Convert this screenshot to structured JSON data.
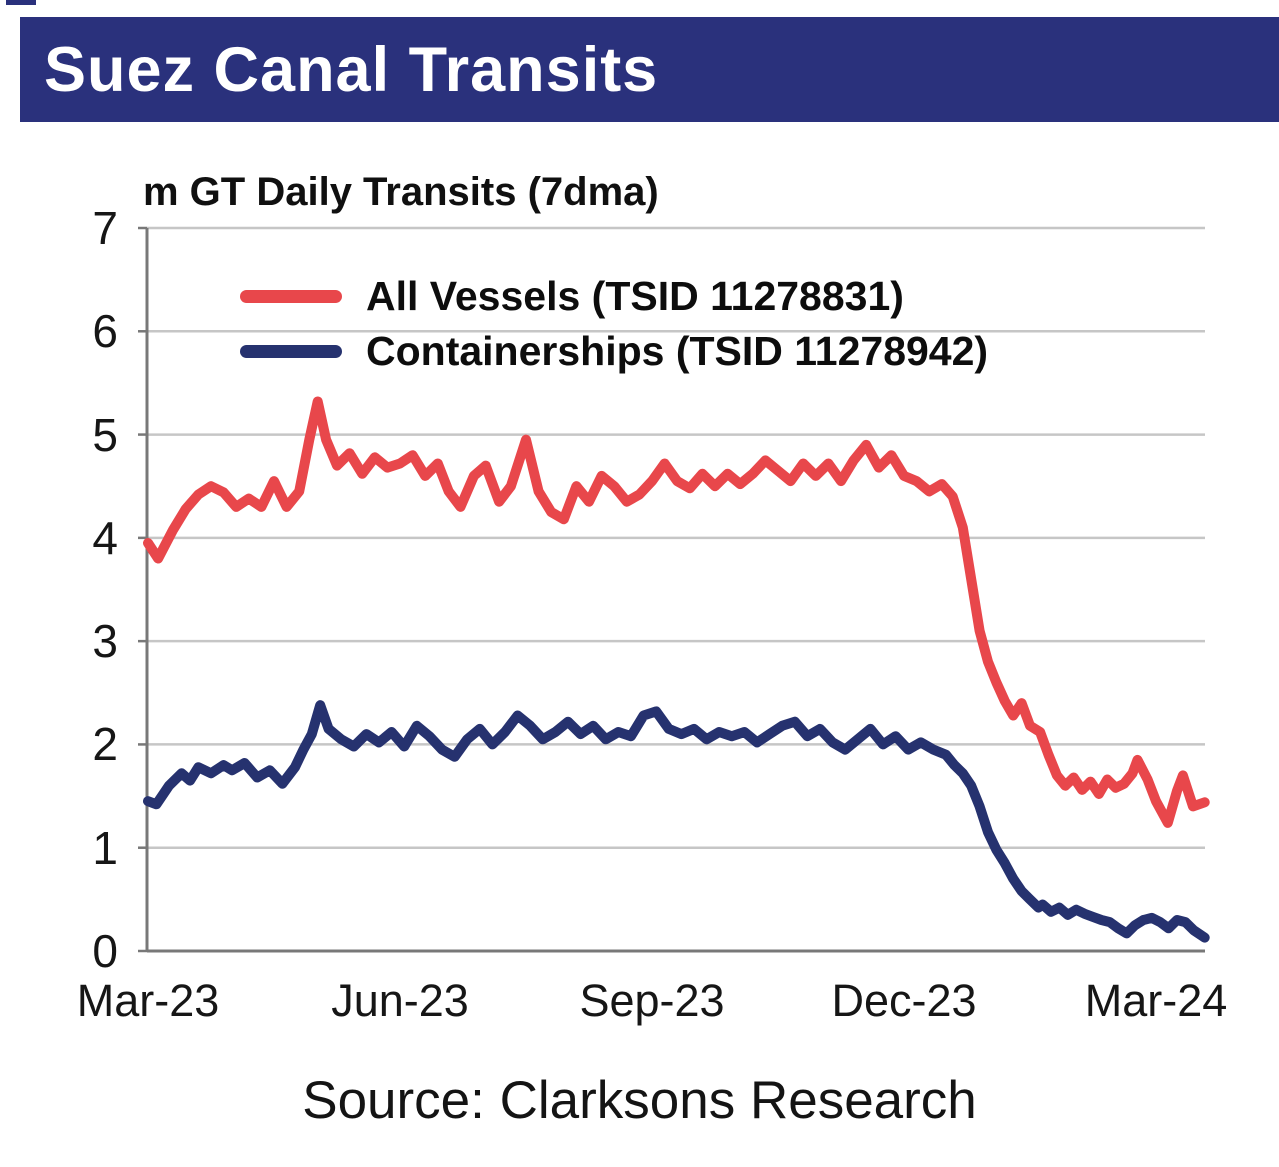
{
  "banner": {
    "title": "Suez Canal Transits"
  },
  "colors": {
    "banner_bg": "#2A317C",
    "all_vessels_red": "#E8474B",
    "containerships_navy": "#26326F",
    "gridline_gray": "#C6C6C6",
    "axis_gray": "#787878"
  },
  "chart": {
    "axis_title": "m GT Daily Transits (7dma)"
  },
  "source": {
    "text": "Source: Clarksons Research"
  },
  "chart_data": {
    "type": "line",
    "title": "Suez Canal Transits",
    "ylabel": "m GT Daily Transits (7dma)",
    "x_unit": "months since Mar-2023 (0 = Mar-23)",
    "xlim": [
      0,
      12.58
    ],
    "ylim": [
      0,
      7
    ],
    "grid": "horizontal gridlines at 1,2,3,4,5,6 plus top border at 7",
    "legend_position": "inside top-left",
    "y_ticks": [
      0,
      1,
      2,
      3,
      4,
      5,
      6,
      7
    ],
    "x_ticks": [
      {
        "label": "Mar-23",
        "month": 0
      },
      {
        "label": "Jun-23",
        "month": 3
      },
      {
        "label": "Sep-23",
        "month": 6
      },
      {
        "label": "Dec-23",
        "month": 9
      },
      {
        "label": "Mar-24",
        "month": 12
      }
    ],
    "source": "Source: Clarksons Research",
    "series": [
      {
        "name": "All Vessels (TSID 11278831)",
        "color": "#E8474B",
        "points": [
          [
            0,
            3.95
          ],
          [
            0.12,
            3.8
          ],
          [
            0.3,
            4.08
          ],
          [
            0.45,
            4.28
          ],
          [
            0.6,
            4.42
          ],
          [
            0.75,
            4.5
          ],
          [
            0.9,
            4.44
          ],
          [
            1.05,
            4.3
          ],
          [
            1.2,
            4.38
          ],
          [
            1.35,
            4.3
          ],
          [
            1.5,
            4.55
          ],
          [
            1.65,
            4.3
          ],
          [
            1.8,
            4.45
          ],
          [
            1.92,
            4.95
          ],
          [
            2.02,
            5.32
          ],
          [
            2.12,
            4.95
          ],
          [
            2.25,
            4.7
          ],
          [
            2.4,
            4.82
          ],
          [
            2.55,
            4.62
          ],
          [
            2.7,
            4.78
          ],
          [
            2.85,
            4.68
          ],
          [
            3,
            4.72
          ],
          [
            3.15,
            4.8
          ],
          [
            3.3,
            4.6
          ],
          [
            3.45,
            4.72
          ],
          [
            3.58,
            4.45
          ],
          [
            3.72,
            4.3
          ],
          [
            3.88,
            4.6
          ],
          [
            4.02,
            4.7
          ],
          [
            4.18,
            4.35
          ],
          [
            4.32,
            4.5
          ],
          [
            4.5,
            4.95
          ],
          [
            4.65,
            4.45
          ],
          [
            4.8,
            4.25
          ],
          [
            4.95,
            4.18
          ],
          [
            5.1,
            4.5
          ],
          [
            5.25,
            4.35
          ],
          [
            5.4,
            4.6
          ],
          [
            5.55,
            4.5
          ],
          [
            5.7,
            4.35
          ],
          [
            5.85,
            4.42
          ],
          [
            6,
            4.55
          ],
          [
            6.15,
            4.72
          ],
          [
            6.3,
            4.55
          ],
          [
            6.45,
            4.48
          ],
          [
            6.6,
            4.62
          ],
          [
            6.75,
            4.5
          ],
          [
            6.9,
            4.62
          ],
          [
            7.05,
            4.52
          ],
          [
            7.2,
            4.62
          ],
          [
            7.35,
            4.75
          ],
          [
            7.5,
            4.65
          ],
          [
            7.65,
            4.55
          ],
          [
            7.8,
            4.72
          ],
          [
            7.95,
            4.6
          ],
          [
            8.1,
            4.72
          ],
          [
            8.25,
            4.55
          ],
          [
            8.4,
            4.75
          ],
          [
            8.55,
            4.9
          ],
          [
            8.7,
            4.68
          ],
          [
            8.85,
            4.8
          ],
          [
            9,
            4.6
          ],
          [
            9.15,
            4.55
          ],
          [
            9.3,
            4.45
          ],
          [
            9.45,
            4.52
          ],
          [
            9.58,
            4.4
          ],
          [
            9.7,
            4.1
          ],
          [
            9.8,
            3.6
          ],
          [
            9.9,
            3.1
          ],
          [
            10,
            2.8
          ],
          [
            10.1,
            2.6
          ],
          [
            10.2,
            2.42
          ],
          [
            10.3,
            2.28
          ],
          [
            10.4,
            2.4
          ],
          [
            10.5,
            2.18
          ],
          [
            10.62,
            2.12
          ],
          [
            10.72,
            1.9
          ],
          [
            10.82,
            1.7
          ],
          [
            10.92,
            1.6
          ],
          [
            11.02,
            1.68
          ],
          [
            11.12,
            1.56
          ],
          [
            11.22,
            1.64
          ],
          [
            11.32,
            1.52
          ],
          [
            11.42,
            1.66
          ],
          [
            11.52,
            1.58
          ],
          [
            11.62,
            1.62
          ],
          [
            11.72,
            1.72
          ],
          [
            11.78,
            1.85
          ],
          [
            11.9,
            1.66
          ],
          [
            12,
            1.45
          ],
          [
            12.14,
            1.24
          ],
          [
            12.25,
            1.55
          ],
          [
            12.32,
            1.7
          ],
          [
            12.44,
            1.4
          ],
          [
            12.58,
            1.44
          ]
        ]
      },
      {
        "name": "Containerships (TSID 11278942)",
        "color": "#26326F",
        "points": [
          [
            0,
            1.45
          ],
          [
            0.1,
            1.42
          ],
          [
            0.25,
            1.6
          ],
          [
            0.4,
            1.72
          ],
          [
            0.5,
            1.65
          ],
          [
            0.6,
            1.78
          ],
          [
            0.75,
            1.72
          ],
          [
            0.9,
            1.8
          ],
          [
            1,
            1.75
          ],
          [
            1.15,
            1.82
          ],
          [
            1.3,
            1.68
          ],
          [
            1.45,
            1.75
          ],
          [
            1.6,
            1.62
          ],
          [
            1.75,
            1.78
          ],
          [
            1.85,
            1.95
          ],
          [
            1.95,
            2.1
          ],
          [
            2.05,
            2.38
          ],
          [
            2.15,
            2.15
          ],
          [
            2.3,
            2.05
          ],
          [
            2.45,
            1.98
          ],
          [
            2.6,
            2.1
          ],
          [
            2.75,
            2.02
          ],
          [
            2.9,
            2.12
          ],
          [
            3.05,
            1.98
          ],
          [
            3.2,
            2.18
          ],
          [
            3.35,
            2.08
          ],
          [
            3.5,
            1.95
          ],
          [
            3.65,
            1.88
          ],
          [
            3.8,
            2.05
          ],
          [
            3.95,
            2.15
          ],
          [
            4.1,
            2
          ],
          [
            4.25,
            2.12
          ],
          [
            4.4,
            2.28
          ],
          [
            4.55,
            2.18
          ],
          [
            4.7,
            2.05
          ],
          [
            4.85,
            2.12
          ],
          [
            5,
            2.22
          ],
          [
            5.15,
            2.1
          ],
          [
            5.3,
            2.18
          ],
          [
            5.45,
            2.05
          ],
          [
            5.6,
            2.12
          ],
          [
            5.75,
            2.08
          ],
          [
            5.9,
            2.28
          ],
          [
            6.05,
            2.32
          ],
          [
            6.2,
            2.15
          ],
          [
            6.35,
            2.1
          ],
          [
            6.5,
            2.15
          ],
          [
            6.65,
            2.05
          ],
          [
            6.8,
            2.12
          ],
          [
            6.95,
            2.08
          ],
          [
            7.1,
            2.12
          ],
          [
            7.25,
            2.02
          ],
          [
            7.4,
            2.1
          ],
          [
            7.55,
            2.18
          ],
          [
            7.7,
            2.22
          ],
          [
            7.85,
            2.08
          ],
          [
            8,
            2.15
          ],
          [
            8.15,
            2.02
          ],
          [
            8.3,
            1.95
          ],
          [
            8.45,
            2.05
          ],
          [
            8.6,
            2.15
          ],
          [
            8.75,
            2
          ],
          [
            8.9,
            2.08
          ],
          [
            9.05,
            1.95
          ],
          [
            9.2,
            2.02
          ],
          [
            9.35,
            1.95
          ],
          [
            9.5,
            1.9
          ],
          [
            9.6,
            1.8
          ],
          [
            9.7,
            1.72
          ],
          [
            9.8,
            1.6
          ],
          [
            9.9,
            1.4
          ],
          [
            10,
            1.15
          ],
          [
            10.1,
            0.98
          ],
          [
            10.2,
            0.85
          ],
          [
            10.3,
            0.7
          ],
          [
            10.4,
            0.58
          ],
          [
            10.5,
            0.5
          ],
          [
            10.6,
            0.42
          ],
          [
            10.65,
            0.45
          ],
          [
            10.75,
            0.38
          ],
          [
            10.85,
            0.42
          ],
          [
            10.95,
            0.35
          ],
          [
            11.05,
            0.4
          ],
          [
            11.15,
            0.36
          ],
          [
            11.25,
            0.33
          ],
          [
            11.35,
            0.3
          ],
          [
            11.45,
            0.28
          ],
          [
            11.55,
            0.22
          ],
          [
            11.65,
            0.17
          ],
          [
            11.75,
            0.25
          ],
          [
            11.85,
            0.3
          ],
          [
            11.95,
            0.32
          ],
          [
            12.05,
            0.28
          ],
          [
            12.15,
            0.22
          ],
          [
            12.25,
            0.3
          ],
          [
            12.35,
            0.28
          ],
          [
            12.45,
            0.2
          ],
          [
            12.58,
            0.13
          ]
        ]
      }
    ]
  }
}
